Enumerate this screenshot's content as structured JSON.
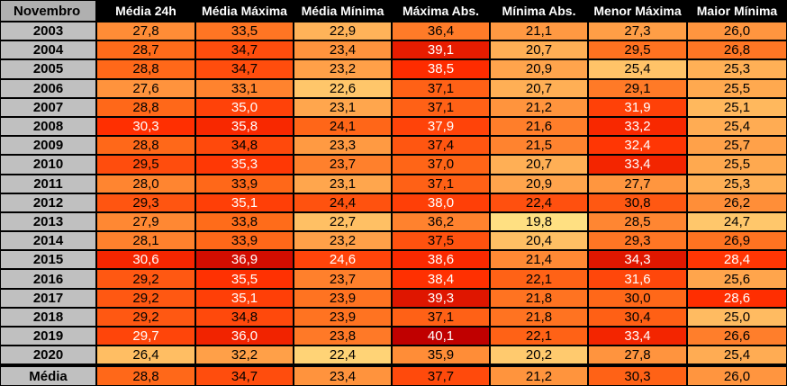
{
  "chart_data": {
    "type": "table",
    "corner_label": "Novembro",
    "columns": [
      "Média 24h",
      "Média Máxima",
      "Média Mínima",
      "Máxima Abs.",
      "Mínima Abs.",
      "Menor Máxima",
      "Maior Mínima"
    ],
    "rows": [
      {
        "label": "2003",
        "values": [
          "27,8",
          "33,5",
          "22,9",
          "36,4",
          "21,1",
          "27,3",
          "26,0"
        ]
      },
      {
        "label": "2004",
        "values": [
          "28,7",
          "34,7",
          "23,4",
          "39,1",
          "20,7",
          "29,5",
          "26,8"
        ]
      },
      {
        "label": "2005",
        "values": [
          "28,8",
          "34,7",
          "23,2",
          "38,5",
          "20,9",
          "25,4",
          "25,3"
        ]
      },
      {
        "label": "2006",
        "values": [
          "27,6",
          "33,1",
          "22,6",
          "37,1",
          "20,7",
          "29,1",
          "25,5"
        ]
      },
      {
        "label": "2007",
        "values": [
          "28,8",
          "35,0",
          "23,1",
          "37,1",
          "21,2",
          "31,9",
          "25,1"
        ]
      },
      {
        "label": "2008",
        "values": [
          "30,3",
          "35,8",
          "24,1",
          "37,9",
          "21,6",
          "33,2",
          "25,4"
        ]
      },
      {
        "label": "2009",
        "values": [
          "28,8",
          "34,8",
          "23,3",
          "37,4",
          "21,5",
          "32,4",
          "25,7"
        ]
      },
      {
        "label": "2010",
        "values": [
          "29,5",
          "35,3",
          "23,7",
          "37,0",
          "20,7",
          "33,4",
          "25,5"
        ]
      },
      {
        "label": "2011",
        "values": [
          "28,0",
          "33,9",
          "23,1",
          "37,1",
          "20,9",
          "27,7",
          "25,3"
        ]
      },
      {
        "label": "2012",
        "values": [
          "29,3",
          "35,1",
          "24,4",
          "38,0",
          "22,4",
          "30,8",
          "26,2"
        ]
      },
      {
        "label": "2013",
        "values": [
          "27,9",
          "33,8",
          "22,7",
          "36,2",
          "19,8",
          "28,5",
          "24,7"
        ]
      },
      {
        "label": "2014",
        "values": [
          "28,1",
          "33,9",
          "23,2",
          "37,5",
          "20,4",
          "29,3",
          "26,9"
        ]
      },
      {
        "label": "2015",
        "values": [
          "30,6",
          "36,9",
          "24,6",
          "38,6",
          "21,4",
          "34,3",
          "28,4"
        ]
      },
      {
        "label": "2016",
        "values": [
          "29,2",
          "35,5",
          "23,7",
          "38,4",
          "22,1",
          "31,6",
          "25,6"
        ]
      },
      {
        "label": "2017",
        "values": [
          "29,2",
          "35,1",
          "23,9",
          "39,3",
          "21,8",
          "30,0",
          "28,6"
        ]
      },
      {
        "label": "2018",
        "values": [
          "29,2",
          "34,8",
          "23,9",
          "37,1",
          "21,8",
          "30,4",
          "25,0"
        ]
      },
      {
        "label": "2019",
        "values": [
          "29,7",
          "36,0",
          "23,8",
          "40,1",
          "22,1",
          "33,4",
          "26,6"
        ]
      },
      {
        "label": "2020",
        "values": [
          "26,4",
          "32,2",
          "22,4",
          "35,9",
          "20,2",
          "27,8",
          "25,4"
        ]
      }
    ],
    "mean_row": {
      "label": "Média",
      "values": [
        "28,8",
        "34,7",
        "23,4",
        "37,7",
        "21,2",
        "30,3",
        "26,0"
      ]
    }
  }
}
